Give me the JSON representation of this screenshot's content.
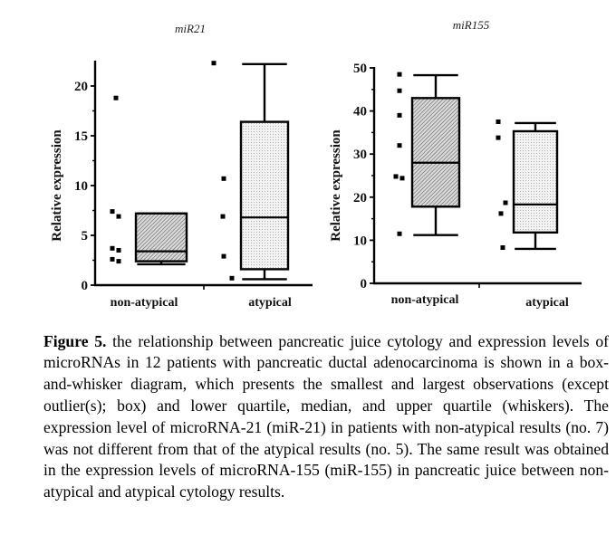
{
  "chart_data": [
    {
      "type": "box",
      "title": "miR21",
      "xlabel": "",
      "ylabel": "Relative expression",
      "ylim": [
        0,
        22.5
      ],
      "yticks": [
        0,
        5,
        10,
        15,
        20
      ],
      "ytick_labels": [
        "0",
        "5",
        "10",
        "15",
        "20"
      ],
      "minor_yticks": [
        2.5,
        7.5,
        12.5,
        17.5
      ],
      "categories": [
        "non-atypical",
        "atypical"
      ],
      "boxes": [
        {
          "category": "non-atypical",
          "whisker_low": 2.1,
          "q1": 2.4,
          "median": 3.4,
          "q3": 7.2,
          "whisker_high": 7.2,
          "fill": "hatched",
          "points": [
            18.8,
            7.4,
            6.9,
            3.7,
            3.5,
            2.6,
            2.4
          ]
        },
        {
          "category": "atypical",
          "whisker_low": 0.6,
          "q1": 1.6,
          "median": 6.8,
          "q3": 16.4,
          "whisker_high": 22.2,
          "fill": "dotted",
          "points": [
            22.3,
            10.7,
            6.9,
            2.9,
            0.7
          ]
        }
      ]
    },
    {
      "type": "box",
      "title": "miR155",
      "xlabel": "",
      "ylabel": "Relative expression",
      "ylim": [
        0,
        50
      ],
      "yticks": [
        0,
        10,
        20,
        30,
        40,
        50
      ],
      "ytick_labels": [
        "0",
        "10",
        "20",
        "30",
        "40",
        "50"
      ],
      "minor_yticks": [
        5,
        15,
        25,
        35,
        45
      ],
      "categories": [
        "non-atypical",
        "atypical"
      ],
      "boxes": [
        {
          "category": "non-atypical",
          "whisker_low": 11.2,
          "q1": 17.8,
          "median": 28.0,
          "q3": 43.0,
          "whisker_high": 48.3,
          "fill": "hatched",
          "points": [
            48.5,
            44.7,
            39.0,
            32.0,
            24.8,
            24.4,
            11.5
          ]
        },
        {
          "category": "atypical",
          "whisker_low": 8.0,
          "q1": 11.8,
          "median": 18.3,
          "q3": 35.3,
          "whisker_high": 37.2,
          "fill": "dotted",
          "points": [
            37.5,
            33.8,
            18.7,
            16.2,
            8.3
          ]
        }
      ]
    }
  ],
  "caption": {
    "label": "Figure 5.",
    "text": " the relationship between pancreatic juice cytology and expression levels of microRNAs in 12 patients with pancreatic ductal adenocarcinoma is shown in a box-and-whisker diagram, which presents the smallest and largest observations (except outlier(s); box) and lower quartile, median, and upper quartile (whiskers). The expression level of microRNA-21 (miR-21) in patients with non-atypical results (no. 7) was not different from that of the atypical results (no. 5). The same result was obtained in the expression levels of microRNA-155 (miR-155) in pancreatic juice between non-atypical and atypical cytology results."
  },
  "colors": {
    "ink": "#000000",
    "hatch_bg": "#d8d8d8",
    "dot_bg": "#eeeeee"
  }
}
